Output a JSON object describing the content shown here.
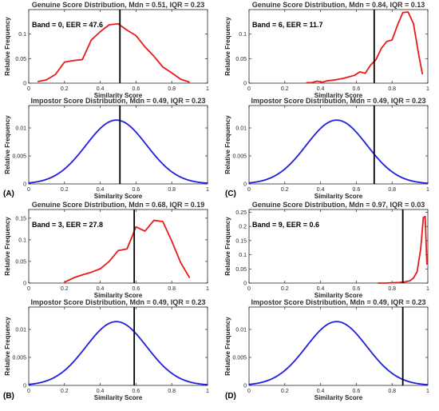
{
  "colors": {
    "genuine": "#e81a1a",
    "impostor": "#1f1fdd",
    "threshold": "#000000",
    "axis": "#262626"
  },
  "chart_data": [
    {
      "panel": "(A)",
      "annotation": "Band = 0, EER = 47.6",
      "threshold": 0.51,
      "genuine": {
        "type": "line",
        "title": "Genuine Score Distribution, Mdn = 0.51, IQR = 0.23",
        "xlabel": "Similarity Score",
        "ylabel": "Relative Frequency",
        "xlim": [
          0,
          1
        ],
        "ylim": [
          0,
          0.15
        ],
        "xticks": [
          0,
          0.2,
          0.4,
          0.6,
          0.8,
          1
        ],
        "xticklabels": [
          "0",
          "0.2",
          "0.4",
          "0.6",
          "0.8",
          "1"
        ],
        "yticks": [
          0,
          0.05,
          0.1
        ],
        "yticklabels": [
          "0",
          "0.05",
          "0.1"
        ],
        "x": [
          0.05,
          0.1,
          0.15,
          0.2,
          0.25,
          0.3,
          0.35,
          0.4,
          0.45,
          0.5,
          0.55,
          0.6,
          0.65,
          0.7,
          0.75,
          0.8,
          0.85,
          0.9
        ],
        "y": [
          0.003,
          0.007,
          0.018,
          0.043,
          0.046,
          0.048,
          0.088,
          0.105,
          0.119,
          0.121,
          0.108,
          0.097,
          0.074,
          0.055,
          0.033,
          0.021,
          0.008,
          0.002
        ]
      },
      "impostor": {
        "type": "line",
        "title": "Impostor Score Distribution, Mdn = 0.49, IQR = 0.23",
        "xlabel": "Similarity Score",
        "ylabel": "Relative Frequency",
        "xlim": [
          0,
          1
        ],
        "ylim": [
          0,
          0.014
        ],
        "xticks": [
          0,
          0.2,
          0.4,
          0.6,
          0.8,
          1
        ],
        "xticklabels": [
          "0",
          "0.2",
          "0.4",
          "0.6",
          "0.8",
          "1"
        ],
        "yticks": [
          0,
          0.005,
          0.01
        ],
        "yticklabels": [
          "0",
          "0.005",
          "0.01"
        ],
        "curve": {
          "kind": "gaussian",
          "center": 0.49,
          "peak": 0.0114,
          "sigma": 0.17
        }
      }
    },
    {
      "panel": "(C)",
      "annotation": "Band = 6, EER = 11.7",
      "threshold": 0.7,
      "genuine": {
        "type": "line",
        "title": "Genuine Score Distribution, Mdn = 0.84, IQR = 0.13",
        "xlabel": "Similarity Score",
        "ylabel": "Relative Frequency",
        "xlim": [
          0,
          1
        ],
        "ylim": [
          0,
          0.15
        ],
        "xticks": [
          0,
          0.2,
          0.4,
          0.6,
          0.8,
          1
        ],
        "xticklabels": [
          "0",
          "0.2",
          "0.4",
          "0.6",
          "0.8",
          "1"
        ],
        "yticks": [
          0,
          0.05,
          0.1
        ],
        "yticklabels": [
          "0",
          "0.05",
          "0.1"
        ],
        "x": [
          0.32,
          0.35,
          0.38,
          0.41,
          0.44,
          0.47,
          0.5,
          0.53,
          0.56,
          0.59,
          0.62,
          0.65,
          0.68,
          0.71,
          0.74,
          0.77,
          0.8,
          0.83,
          0.86,
          0.89,
          0.92,
          0.95,
          0.97
        ],
        "y": [
          0.001,
          0.001,
          0.004,
          0.002,
          0.005,
          0.006,
          0.008,
          0.01,
          0.013,
          0.016,
          0.023,
          0.02,
          0.037,
          0.048,
          0.071,
          0.085,
          0.088,
          0.118,
          0.144,
          0.145,
          0.121,
          0.056,
          0.018
        ]
      },
      "impostor": {
        "type": "line",
        "title": "Impostor Score Distribution, Mdn = 0.49, IQR = 0.23",
        "xlabel": "Similarity Score",
        "ylabel": "Relative Frequency",
        "xlim": [
          0,
          1
        ],
        "ylim": [
          0,
          0.014
        ],
        "xticks": [
          0,
          0.2,
          0.4,
          0.6,
          0.8,
          1
        ],
        "xticklabels": [
          "0",
          "0.2",
          "0.4",
          "0.6",
          "0.8",
          "1"
        ],
        "yticks": [
          0,
          0.005,
          0.01
        ],
        "yticklabels": [
          "0",
          "0.005",
          "0.01"
        ],
        "curve": {
          "kind": "gaussian",
          "center": 0.49,
          "peak": 0.0114,
          "sigma": 0.17
        }
      }
    },
    {
      "panel": "(B)",
      "annotation": "Band = 3, EER = 27.8",
      "threshold": 0.59,
      "genuine": {
        "type": "line",
        "title": "Genuine Score Distribution, Mdn = 0.68, IQR = 0.19",
        "xlabel": "Similarity Score",
        "ylabel": "Relative Frequency",
        "xlim": [
          0,
          1
        ],
        "ylim": [
          0,
          0.17
        ],
        "xticks": [
          0,
          0.2,
          0.4,
          0.6,
          0.8,
          1
        ],
        "xticklabels": [
          "0",
          "0.2",
          "0.4",
          "0.6",
          "0.8",
          "1"
        ],
        "yticks": [
          0,
          0.05,
          0.1,
          0.15
        ],
        "yticklabels": [
          "0",
          "0.05",
          "0.1",
          "0.15"
        ],
        "x": [
          0.2,
          0.25,
          0.3,
          0.35,
          0.4,
          0.45,
          0.5,
          0.55,
          0.6,
          0.65,
          0.7,
          0.75,
          0.8,
          0.85,
          0.9
        ],
        "y": [
          0.002,
          0.012,
          0.019,
          0.025,
          0.033,
          0.05,
          0.075,
          0.079,
          0.13,
          0.12,
          0.145,
          0.142,
          0.097,
          0.047,
          0.012
        ]
      },
      "impostor": {
        "type": "line",
        "title": "Impostor Score Distribution, Mdn = 0.49, IQR = 0.23",
        "xlabel": "Similarity Score",
        "ylabel": "Relative Frequency",
        "xlim": [
          0,
          1
        ],
        "ylim": [
          0,
          0.014
        ],
        "xticks": [
          0,
          0.2,
          0.4,
          0.6,
          0.8,
          1
        ],
        "xticklabels": [
          "0",
          "0.2",
          "0.4",
          "0.6",
          "0.8",
          "1"
        ],
        "yticks": [
          0,
          0.005,
          0.01
        ],
        "yticklabels": [
          "0",
          "0.005",
          "0.01"
        ],
        "curve": {
          "kind": "gaussian",
          "center": 0.49,
          "peak": 0.0114,
          "sigma": 0.17
        }
      }
    },
    {
      "panel": "(D)",
      "annotation": "Band = 9, EER = 0.6",
      "threshold": 0.86,
      "genuine": {
        "type": "line",
        "title": "Genuine Score Distribution, Mdn = 0.97, IQR = 0.03",
        "xlabel": "Similarity Score",
        "ylabel": "Relative Frequency",
        "xlim": [
          0,
          1
        ],
        "ylim": [
          0,
          0.26
        ],
        "xticks": [
          0,
          0.2,
          0.4,
          0.6,
          0.8,
          1
        ],
        "xticklabels": [
          "0",
          "0.2",
          "0.4",
          "0.6",
          "0.8",
          "1"
        ],
        "yticks": [
          0,
          0.05,
          0.1,
          0.15,
          0.2,
          0.25
        ],
        "yticklabels": [
          "0",
          "0.05",
          "0.1",
          "0.15",
          "0.2",
          "0.25"
        ],
        "x": [
          0.72,
          0.76,
          0.8,
          0.84,
          0.87,
          0.9,
          0.92,
          0.94,
          0.96,
          0.975,
          0.985,
          0.995
        ],
        "y": [
          0.0,
          0.0,
          0.001,
          0.002,
          0.004,
          0.008,
          0.018,
          0.04,
          0.12,
          0.232,
          0.235,
          0.065
        ]
      },
      "impostor": {
        "type": "line",
        "title": "Impostor Score Distribution, Mdn = 0.49, IQR = 0.23",
        "xlabel": "Similarity Score",
        "ylabel": "Relative Frequency",
        "xlim": [
          0,
          1
        ],
        "ylim": [
          0,
          0.014
        ],
        "xticks": [
          0,
          0.2,
          0.4,
          0.6,
          0.8,
          1
        ],
        "xticklabels": [
          "0",
          "0.2",
          "0.4",
          "0.6",
          "0.8",
          "1"
        ],
        "yticks": [
          0,
          0.005,
          0.01
        ],
        "yticklabels": [
          "0",
          "0.005",
          "0.01"
        ],
        "curve": {
          "kind": "gaussian",
          "center": 0.49,
          "peak": 0.0114,
          "sigma": 0.17
        }
      }
    }
  ]
}
